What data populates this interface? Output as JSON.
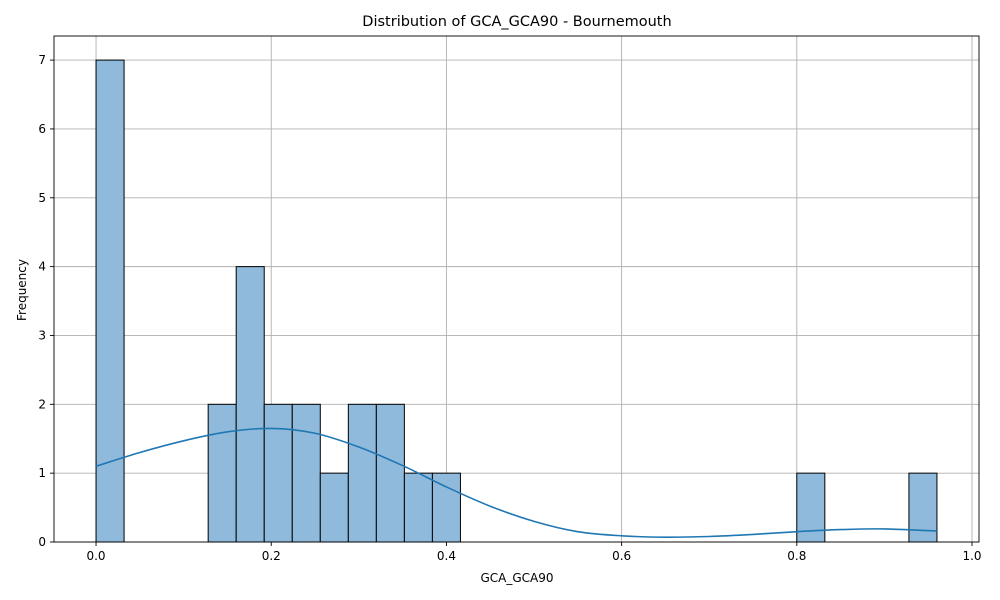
{
  "chart_data": {
    "type": "bar",
    "title": "Distribution of GCA_GCA90 - Bournemouth",
    "xlabel": "GCA_GCA90",
    "ylabel": "Frequency",
    "xlim": [
      -0.048,
      1.008
    ],
    "ylim": [
      0,
      7.35
    ],
    "xticks": [
      0.0,
      0.2,
      0.4,
      0.6,
      0.8,
      1.0
    ],
    "xtick_labels": [
      "0.0",
      "0.2",
      "0.4",
      "0.6",
      "0.8",
      "1.0"
    ],
    "yticks": [
      0,
      1,
      2,
      3,
      4,
      5,
      6,
      7
    ],
    "ytick_labels": [
      "0",
      "1",
      "2",
      "3",
      "4",
      "5",
      "6",
      "7"
    ],
    "grid": true,
    "bin_start": 0.0,
    "bin_end": 0.96,
    "counts": [
      7,
      0,
      0,
      0,
      2,
      4,
      2,
      2,
      1,
      2,
      2,
      1,
      1,
      0,
      0,
      0,
      0,
      0,
      0,
      0,
      0,
      0,
      0,
      0,
      0,
      1,
      0,
      0,
      0,
      1
    ],
    "kde": {
      "x": [
        0.0,
        0.05,
        0.1,
        0.15,
        0.2,
        0.25,
        0.3,
        0.35,
        0.4,
        0.45,
        0.5,
        0.55,
        0.6,
        0.65,
        0.7,
        0.75,
        0.8,
        0.85,
        0.9,
        0.96
      ],
      "y": [
        1.1,
        1.3,
        1.47,
        1.6,
        1.65,
        1.58,
        1.38,
        1.11,
        0.8,
        0.52,
        0.3,
        0.15,
        0.09,
        0.07,
        0.08,
        0.11,
        0.15,
        0.18,
        0.19,
        0.16
      ]
    },
    "colors": {
      "bar_fill": "#8fbadb",
      "bar_edge": "#000000",
      "kde_line": "#1f77b4",
      "grid": "#b0b0b0"
    }
  }
}
